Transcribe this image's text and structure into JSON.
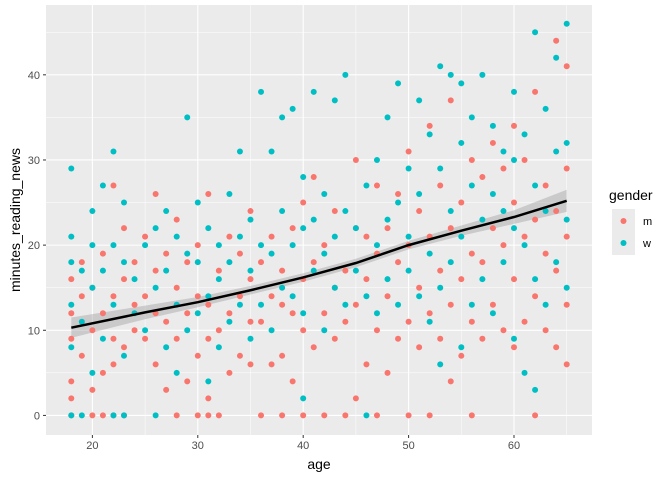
{
  "chart_data": {
    "type": "scatter",
    "xlabel": "age",
    "ylabel": "minutes_reading_news",
    "xlim": [
      15.6,
      67.4
    ],
    "ylim": [
      -2.3,
      48.2
    ],
    "xticks": [
      20,
      30,
      40,
      50,
      60
    ],
    "yticks": [
      0,
      10,
      20,
      30,
      40
    ],
    "legend": {
      "title": "gender",
      "position": "right",
      "entries": [
        {
          "label": "m",
          "color": "#F8766D"
        },
        {
          "label": "w",
          "color": "#00BFC4"
        }
      ]
    },
    "grid": true,
    "series": [
      {
        "name": "m",
        "color": "#F8766D",
        "points": [
          [
            18,
            0
          ],
          [
            18,
            2
          ],
          [
            18,
            4
          ],
          [
            18,
            9
          ],
          [
            18,
            12
          ],
          [
            18,
            16
          ],
          [
            19,
            7
          ],
          [
            19,
            14
          ],
          [
            19,
            18
          ],
          [
            20,
            0
          ],
          [
            20,
            3
          ],
          [
            20,
            10
          ],
          [
            20,
            15
          ],
          [
            21,
            0
          ],
          [
            21,
            5
          ],
          [
            21,
            12
          ],
          [
            21,
            19
          ],
          [
            22,
            0
          ],
          [
            22,
            6
          ],
          [
            22,
            9
          ],
          [
            22,
            14
          ],
          [
            22,
            27
          ],
          [
            23,
            0
          ],
          [
            23,
            8
          ],
          [
            23,
            16
          ],
          [
            23,
            22
          ],
          [
            24,
            10
          ],
          [
            24,
            13
          ],
          [
            24,
            18
          ],
          [
            25,
            9
          ],
          [
            25,
            14
          ],
          [
            25,
            21
          ],
          [
            26,
            6
          ],
          [
            26,
            12
          ],
          [
            26,
            17
          ],
          [
            26,
            26
          ],
          [
            27,
            3
          ],
          [
            27,
            11
          ],
          [
            27,
            19
          ],
          [
            28,
            0
          ],
          [
            28,
            9
          ],
          [
            28,
            15
          ],
          [
            28,
            23
          ],
          [
            29,
            4
          ],
          [
            29,
            12
          ],
          [
            29,
            18
          ],
          [
            30,
            0
          ],
          [
            30,
            7
          ],
          [
            30,
            14
          ],
          [
            30,
            20
          ],
          [
            31,
            0
          ],
          [
            31,
            2
          ],
          [
            31,
            9
          ],
          [
            31,
            13
          ],
          [
            31,
            26
          ],
          [
            32,
            0
          ],
          [
            32,
            10
          ],
          [
            32,
            17
          ],
          [
            33,
            5
          ],
          [
            33,
            12
          ],
          [
            33,
            21
          ],
          [
            34,
            7
          ],
          [
            34,
            14
          ],
          [
            34,
            19
          ],
          [
            35,
            6
          ],
          [
            35,
            11
          ],
          [
            35,
            16
          ],
          [
            35,
            24
          ],
          [
            36,
            0
          ],
          [
            36,
            11
          ],
          [
            36,
            18
          ],
          [
            37,
            6
          ],
          [
            37,
            14
          ],
          [
            37,
            21
          ],
          [
            38,
            0
          ],
          [
            38,
            7
          ],
          [
            38,
            13
          ],
          [
            38,
            17
          ],
          [
            39,
            4
          ],
          [
            39,
            12
          ],
          [
            39,
            22
          ],
          [
            40,
            0
          ],
          [
            40,
            10
          ],
          [
            40,
            16
          ],
          [
            40,
            25
          ],
          [
            41,
            8
          ],
          [
            41,
            18
          ],
          [
            41,
            28
          ],
          [
            42,
            0
          ],
          [
            42,
            12
          ],
          [
            42,
            20
          ],
          [
            43,
            9
          ],
          [
            43,
            15
          ],
          [
            43,
            24
          ],
          [
            44,
            0
          ],
          [
            44,
            11
          ],
          [
            44,
            17
          ],
          [
            45,
            2
          ],
          [
            45,
            13
          ],
          [
            45,
            22
          ],
          [
            45,
            30
          ],
          [
            46,
            6
          ],
          [
            46,
            16
          ],
          [
            46,
            21
          ],
          [
            47,
            0
          ],
          [
            47,
            10
          ],
          [
            47,
            19
          ],
          [
            47,
            27
          ],
          [
            48,
            5
          ],
          [
            48,
            14
          ],
          [
            48,
            22
          ],
          [
            49,
            9
          ],
          [
            49,
            18
          ],
          [
            49,
            26
          ],
          [
            50,
            0
          ],
          [
            50,
            11
          ],
          [
            50,
            20
          ],
          [
            50,
            31
          ],
          [
            51,
            8
          ],
          [
            51,
            15
          ],
          [
            51,
            24
          ],
          [
            52,
            0
          ],
          [
            52,
            12
          ],
          [
            52,
            21
          ],
          [
            52,
            34
          ],
          [
            53,
            9
          ],
          [
            53,
            17
          ],
          [
            53,
            27
          ],
          [
            54,
            4
          ],
          [
            54,
            13
          ],
          [
            54,
            22
          ],
          [
            54,
            37
          ],
          [
            55,
            7
          ],
          [
            55,
            16
          ],
          [
            55,
            25
          ],
          [
            56,
            0
          ],
          [
            56,
            11
          ],
          [
            56,
            19
          ],
          [
            56,
            30
          ],
          [
            57,
            9
          ],
          [
            57,
            18
          ],
          [
            57,
            28
          ],
          [
            58,
            13
          ],
          [
            58,
            22
          ],
          [
            58,
            32
          ],
          [
            59,
            10
          ],
          [
            59,
            20
          ],
          [
            59,
            29
          ],
          [
            60,
            8
          ],
          [
            60,
            16
          ],
          [
            60,
            25
          ],
          [
            60,
            34
          ],
          [
            61,
            11
          ],
          [
            61,
            21
          ],
          [
            61,
            30
          ],
          [
            62,
            0
          ],
          [
            62,
            14
          ],
          [
            62,
            23
          ],
          [
            62,
            38
          ],
          [
            63,
            10
          ],
          [
            63,
            19
          ],
          [
            63,
            27
          ],
          [
            64,
            8
          ],
          [
            64,
            17
          ],
          [
            64,
            24
          ],
          [
            64,
            44
          ],
          [
            65,
            6
          ],
          [
            65,
            13
          ],
          [
            65,
            21
          ],
          [
            65,
            29
          ],
          [
            65,
            41
          ]
        ]
      },
      {
        "name": "w",
        "color": "#00BFC4",
        "points": [
          [
            18,
            0
          ],
          [
            18,
            8
          ],
          [
            18,
            13
          ],
          [
            18,
            18
          ],
          [
            18,
            21
          ],
          [
            18,
            29
          ],
          [
            19,
            0
          ],
          [
            19,
            11
          ],
          [
            19,
            17
          ],
          [
            20,
            5
          ],
          [
            20,
            15
          ],
          [
            20,
            20
          ],
          [
            20,
            24
          ],
          [
            21,
            9
          ],
          [
            21,
            17
          ],
          [
            21,
            27
          ],
          [
            22,
            0
          ],
          [
            22,
            13
          ],
          [
            22,
            20
          ],
          [
            22,
            31
          ],
          [
            23,
            0
          ],
          [
            23,
            7
          ],
          [
            23,
            18
          ],
          [
            23,
            25
          ],
          [
            24,
            12
          ],
          [
            24,
            16
          ],
          [
            25,
            10
          ],
          [
            25,
            20
          ],
          [
            26,
            0
          ],
          [
            26,
            15
          ],
          [
            26,
            22
          ],
          [
            27,
            8
          ],
          [
            27,
            17
          ],
          [
            27,
            24
          ],
          [
            28,
            5
          ],
          [
            28,
            13
          ],
          [
            28,
            21
          ],
          [
            29,
            10
          ],
          [
            29,
            19
          ],
          [
            29,
            35
          ],
          [
            30,
            12
          ],
          [
            30,
            18
          ],
          [
            30,
            25
          ],
          [
            31,
            4
          ],
          [
            31,
            14
          ],
          [
            31,
            22
          ],
          [
            32,
            8
          ],
          [
            32,
            16
          ],
          [
            32,
            20
          ],
          [
            33,
            11
          ],
          [
            33,
            18
          ],
          [
            33,
            26
          ],
          [
            34,
            13
          ],
          [
            34,
            21
          ],
          [
            34,
            31
          ],
          [
            35,
            9
          ],
          [
            35,
            17
          ],
          [
            35,
            23
          ],
          [
            36,
            13
          ],
          [
            36,
            20
          ],
          [
            36,
            38
          ],
          [
            37,
            10
          ],
          [
            37,
            19
          ],
          [
            37,
            31
          ],
          [
            38,
            15
          ],
          [
            38,
            24
          ],
          [
            38,
            35
          ],
          [
            39,
            14
          ],
          [
            39,
            20
          ],
          [
            39,
            36
          ],
          [
            40,
            2
          ],
          [
            40,
            12
          ],
          [
            40,
            22
          ],
          [
            40,
            28
          ],
          [
            41,
            17
          ],
          [
            41,
            23
          ],
          [
            41,
            38
          ],
          [
            42,
            10
          ],
          [
            42,
            19
          ],
          [
            42,
            26
          ],
          [
            43,
            15
          ],
          [
            43,
            21
          ],
          [
            43,
            37
          ],
          [
            44,
            13
          ],
          [
            44,
            24
          ],
          [
            44,
            40
          ],
          [
            45,
            17
          ],
          [
            45,
            22
          ],
          [
            46,
            0
          ],
          [
            46,
            14
          ],
          [
            46,
            27
          ],
          [
            47,
            12
          ],
          [
            47,
            20
          ],
          [
            47,
            30
          ],
          [
            48,
            16
          ],
          [
            48,
            23
          ],
          [
            48,
            35
          ],
          [
            49,
            13
          ],
          [
            49,
            25
          ],
          [
            49,
            39
          ],
          [
            50,
            17
          ],
          [
            50,
            21
          ],
          [
            50,
            29
          ],
          [
            51,
            14
          ],
          [
            51,
            26
          ],
          [
            51,
            37
          ],
          [
            52,
            11
          ],
          [
            52,
            19
          ],
          [
            52,
            33
          ],
          [
            53,
            6
          ],
          [
            53,
            15
          ],
          [
            53,
            29
          ],
          [
            53,
            41
          ],
          [
            54,
            18
          ],
          [
            54,
            24
          ],
          [
            54,
            40
          ],
          [
            55,
            8
          ],
          [
            55,
            21
          ],
          [
            55,
            32
          ],
          [
            55,
            39
          ],
          [
            56,
            13
          ],
          [
            56,
            27
          ],
          [
            56,
            35
          ],
          [
            57,
            16
          ],
          [
            57,
            23
          ],
          [
            57,
            40
          ],
          [
            58,
            12
          ],
          [
            58,
            26
          ],
          [
            58,
            34
          ],
          [
            59,
            18
          ],
          [
            59,
            24
          ],
          [
            59,
            31
          ],
          [
            60,
            9
          ],
          [
            60,
            22
          ],
          [
            60,
            30
          ],
          [
            60,
            38
          ],
          [
            61,
            5
          ],
          [
            61,
            20
          ],
          [
            61,
            33
          ],
          [
            62,
            3
          ],
          [
            62,
            16
          ],
          [
            62,
            27
          ],
          [
            62,
            45
          ],
          [
            63,
            13
          ],
          [
            63,
            24
          ],
          [
            63,
            36
          ],
          [
            64,
            18
          ],
          [
            64,
            31
          ],
          [
            64,
            42
          ],
          [
            65,
            15
          ],
          [
            65,
            23
          ],
          [
            65,
            32
          ],
          [
            65,
            46
          ]
        ]
      }
    ],
    "smooth": {
      "color": "#000000",
      "x": [
        18,
        25,
        30,
        35,
        40,
        45,
        50,
        55,
        60,
        65
      ],
      "y": [
        10.3,
        12.1,
        13.3,
        14.7,
        16.2,
        17.9,
        20.0,
        21.7,
        23.3,
        25.2
      ],
      "se": [
        1.2,
        0.8,
        0.6,
        0.5,
        0.5,
        0.5,
        0.5,
        0.6,
        0.8,
        1.3
      ]
    }
  }
}
